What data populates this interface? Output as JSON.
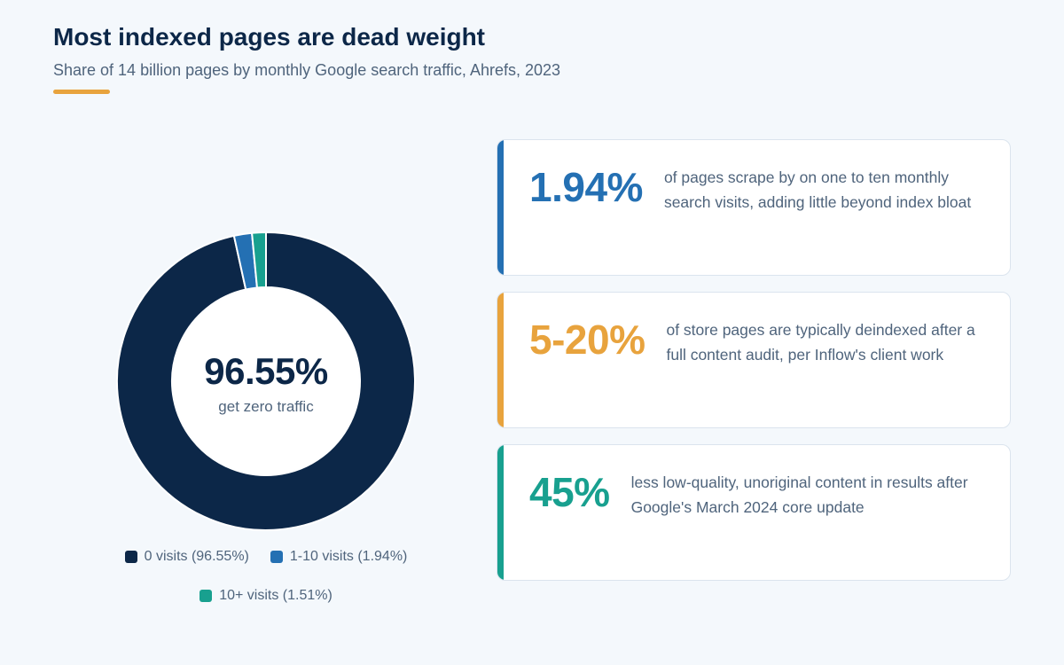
{
  "header": {
    "title": "Most indexed pages are dead weight",
    "subtitle": "Share of 14 billion pages by monthly Google search traffic, Ahrefs, 2023"
  },
  "colors": {
    "navy": "#0c2748",
    "blue": "#2470b3",
    "teal": "#18a08f",
    "amber": "#e8a33d"
  },
  "chart_data": {
    "type": "pie",
    "variant": "donut",
    "categories": [
      "0 visits",
      "1-10 visits",
      "10+ visits"
    ],
    "values": [
      96.55,
      1.94,
      1.51
    ],
    "colors": [
      "#0c2748",
      "#2470b3",
      "#18a08f"
    ],
    "center_value": "96.55%",
    "center_label": "get zero traffic",
    "legend": [
      {
        "label": "0 visits (96.55%)",
        "color": "#0c2748"
      },
      {
        "label": "1-10 visits (1.94%)",
        "color": "#2470b3"
      },
      {
        "label": "10+ visits (1.51%)",
        "color": "#18a08f"
      }
    ],
    "legend_position": "bottom"
  },
  "cards": [
    {
      "value": "1.94%",
      "text": "of pages scrape by on one to ten monthly search visits, adding little beyond index bloat",
      "color": "#2470b3"
    },
    {
      "value": "5-20%",
      "text": "of store pages are typically deindexed after a full content audit, per Inflow's client work",
      "color": "#e8a33d"
    },
    {
      "value": "45%",
      "text": "less low-quality, unoriginal content in results after Google's March 2024 core update",
      "color": "#18a08f"
    }
  ]
}
